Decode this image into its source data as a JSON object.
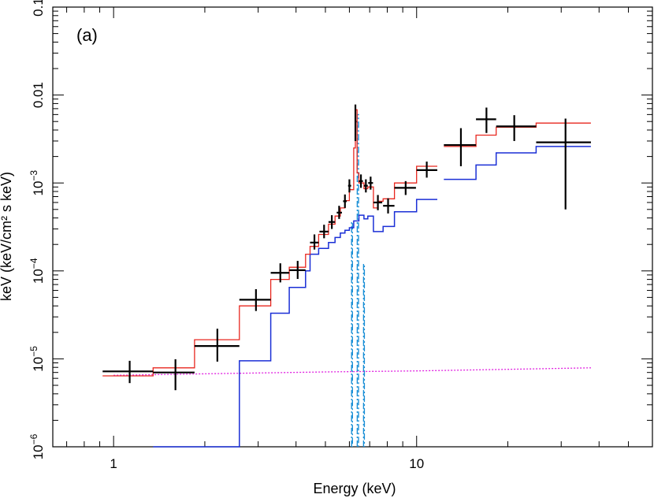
{
  "chart_data": {
    "type": "line",
    "panel_label": "(a)",
    "xlabel": "Energy (keV)",
    "ylabel": "keV (keV/cm² s keV)",
    "xscale": "log",
    "yscale": "log",
    "xlim": [
      0.63,
      60
    ],
    "ylim": [
      1e-06,
      0.1
    ],
    "grid": false,
    "x_ticks": [
      {
        "value": 1,
        "label": "1"
      },
      {
        "value": 10,
        "label": "10"
      }
    ],
    "y_ticks": [
      {
        "value": 0.1,
        "label": "0.1",
        "base": "",
        "exp": ""
      },
      {
        "value": 0.01,
        "label": "0.01",
        "base": "",
        "exp": ""
      },
      {
        "value": 0.001,
        "label": "",
        "base": "10",
        "exp": "−3"
      },
      {
        "value": 0.0001,
        "label": "",
        "base": "10",
        "exp": "−4"
      },
      {
        "value": 1e-05,
        "label": "",
        "base": "10",
        "exp": "−5"
      },
      {
        "value": 1e-06,
        "label": "",
        "base": "10",
        "exp": "−6"
      }
    ],
    "colors": {
      "data": "#000000",
      "total_model": "#e8271f",
      "continuum": "#1a2fd6",
      "lines": "#1a8fd6",
      "background": "#e020e0"
    },
    "data_points": [
      {
        "x": 1.13,
        "xlo": 0.92,
        "xhi": 1.35,
        "y": 7.2e-06,
        "ylo": 5.3e-06,
        "yhi": 9.5e-06
      },
      {
        "x": 1.6,
        "xlo": 1.35,
        "xhi": 1.85,
        "y": 7e-06,
        "ylo": 4.4e-06,
        "yhi": 9.9e-06
      },
      {
        "x": 2.2,
        "xlo": 1.85,
        "xhi": 2.6,
        "y": 1.4e-05,
        "ylo": 9.3e-06,
        "yhi": 2.2e-05
      },
      {
        "x": 2.95,
        "xlo": 2.6,
        "xhi": 3.3,
        "y": 4.7e-05,
        "ylo": 3.5e-05,
        "yhi": 6.2e-05
      },
      {
        "x": 3.55,
        "xlo": 3.3,
        "xhi": 3.8,
        "y": 9.5e-05,
        "ylo": 7.4e-05,
        "yhi": 0.000122
      },
      {
        "x": 4.05,
        "xlo": 3.8,
        "xhi": 4.3,
        "y": 0.000102,
        "ylo": 8.1e-05,
        "yhi": 0.00013
      },
      {
        "x": 4.6,
        "xlo": 4.45,
        "xhi": 4.75,
        "y": 0.00021,
        "ylo": 0.000175,
        "yhi": 0.00026
      },
      {
        "x": 4.95,
        "xlo": 4.78,
        "xhi": 5.12,
        "y": 0.00028,
        "ylo": 0.000235,
        "yhi": 0.000335
      },
      {
        "x": 5.25,
        "xlo": 5.12,
        "xhi": 5.38,
        "y": 0.00036,
        "ylo": 0.0003,
        "yhi": 0.00043
      },
      {
        "x": 5.55,
        "xlo": 5.45,
        "xhi": 5.67,
        "y": 0.00046,
        "ylo": 0.00039,
        "yhi": 0.00055
      },
      {
        "x": 5.8,
        "xlo": 5.72,
        "xhi": 5.88,
        "y": 0.00062,
        "ylo": 0.00052,
        "yhi": 0.00074
      },
      {
        "x": 6.0,
        "xlo": 5.94,
        "xhi": 6.08,
        "y": 0.00093,
        "ylo": 0.00078,
        "yhi": 0.0011
      },
      {
        "x": 6.28,
        "xlo": 6.25,
        "xhi": 6.33,
        "y": 0.005,
        "ylo": 0.003,
        "yhi": 0.0078
      },
      {
        "x": 6.55,
        "xlo": 6.45,
        "xhi": 6.65,
        "y": 0.00105,
        "ylo": 0.00088,
        "yhi": 0.00125
      },
      {
        "x": 6.8,
        "xlo": 6.7,
        "xhi": 6.9,
        "y": 0.00093,
        "ylo": 0.00078,
        "yhi": 0.0011
      },
      {
        "x": 7.05,
        "xlo": 6.92,
        "xhi": 7.18,
        "y": 0.001,
        "ylo": 0.00084,
        "yhi": 0.00118
      },
      {
        "x": 7.45,
        "xlo": 7.2,
        "xhi": 7.7,
        "y": 0.0006,
        "ylo": 0.00049,
        "yhi": 0.00073
      },
      {
        "x": 8.05,
        "xlo": 7.75,
        "xhi": 8.45,
        "y": 0.00055,
        "ylo": 0.00045,
        "yhi": 0.00067
      },
      {
        "x": 9.2,
        "xlo": 8.45,
        "xhi": 9.95,
        "y": 0.00088,
        "ylo": 0.00073,
        "yhi": 0.00105
      },
      {
        "x": 10.8,
        "xlo": 10.0,
        "xhi": 11.7,
        "y": 0.0014,
        "ylo": 0.00115,
        "yhi": 0.00175
      },
      {
        "x": 14.0,
        "xlo": 12.3,
        "xhi": 15.7,
        "y": 0.0027,
        "ylo": 0.00155,
        "yhi": 0.0042
      },
      {
        "x": 17.0,
        "xlo": 15.7,
        "xhi": 18.3,
        "y": 0.0053,
        "ylo": 0.0037,
        "yhi": 0.0072
      },
      {
        "x": 21.0,
        "xlo": 18.3,
        "xhi": 24.8,
        "y": 0.0044,
        "ylo": 0.003,
        "yhi": 0.0059
      },
      {
        "x": 31.0,
        "xlo": 24.8,
        "xhi": 37.6,
        "y": 0.0029,
        "ylo": 0.0005,
        "yhi": 0.0054
      }
    ],
    "series": [
      {
        "id": "total_model",
        "bins": [
          [
            [
              0.92,
              1.35,
              6.4e-06
            ],
            [
              1.35,
              1.85,
              7.9e-06
            ],
            [
              1.85,
              2.6,
              1.65e-05
            ],
            [
              2.6,
              3.3,
              4e-05
            ],
            [
              3.3,
              3.8,
              8e-05
            ],
            [
              3.8,
              4.3,
              0.00011
            ],
            [
              4.3,
              4.45,
              0.000155
            ],
            [
              4.45,
              4.75,
              0.00019
            ],
            [
              4.75,
              5.12,
              0.00026
            ],
            [
              5.12,
              5.38,
              0.00034
            ],
            [
              5.38,
              5.6,
              0.00042
            ],
            [
              5.6,
              5.8,
              0.00052
            ],
            [
              5.8,
              6.0,
              0.00063
            ],
            [
              6.0,
              6.2,
              0.00084
            ],
            [
              6.2,
              6.28,
              0.0025
            ],
            [
              6.28,
              6.36,
              0.0068
            ],
            [
              6.36,
              6.45,
              0.0013
            ],
            [
              6.45,
              6.7,
              0.001
            ],
            [
              6.7,
              6.9,
              0.00086
            ],
            [
              6.9,
              7.2,
              0.0009
            ],
            [
              7.2,
              7.45,
              0.00052
            ],
            [
              7.45,
              7.75,
              0.00062
            ],
            [
              7.75,
              8.45,
              0.00066
            ],
            [
              8.45,
              10.0,
              0.001
            ],
            [
              10.0,
              11.7,
              0.00155
            ]
          ],
          [
            [
              12.3,
              15.7,
              0.0026
            ],
            [
              15.7,
              18.3,
              0.0035
            ],
            [
              18.3,
              24.8,
              0.0043
            ],
            [
              24.8,
              37.6,
              0.0048
            ]
          ]
        ]
      },
      {
        "id": "continuum",
        "bins": [
          [
            [
              1.35,
              1.85,
              3e-07
            ],
            [
              1.85,
              2.6,
              1e-06
            ],
            [
              2.6,
              3.3,
              9.5e-06
            ],
            [
              3.3,
              3.8,
              3.3e-05
            ],
            [
              3.8,
              4.3,
              6.5e-05
            ],
            [
              4.3,
              4.45,
              0.0001
            ],
            [
              4.45,
              4.75,
              0.000155
            ],
            [
              4.75,
              5.12,
              0.00018
            ],
            [
              5.12,
              5.38,
              0.00021
            ],
            [
              5.38,
              5.6,
              0.00024
            ],
            [
              5.6,
              5.8,
              0.00027
            ],
            [
              5.8,
              6.0,
              0.00029
            ],
            [
              6.0,
              6.2,
              0.00031
            ],
            [
              6.2,
              6.45,
              0.00037
            ],
            [
              6.45,
              6.7,
              0.00043
            ],
            [
              6.7,
              6.9,
              0.00039
            ],
            [
              6.9,
              7.2,
              0.00042
            ],
            [
              7.2,
              7.75,
              0.00028
            ],
            [
              7.75,
              8.45,
              0.00032
            ],
            [
              8.45,
              10.0,
              0.00047
            ],
            [
              10.0,
              11.7,
              0.00065
            ]
          ],
          [
            [
              12.3,
              15.7,
              0.0011
            ],
            [
              15.7,
              18.3,
              0.0016
            ],
            [
              18.3,
              24.8,
              0.0022
            ],
            [
              24.8,
              37.6,
              0.0026
            ]
          ]
        ]
      },
      {
        "id": "background",
        "points": [
          [
            1.0,
            6.5e-06
          ],
          [
            2.0,
            6.75e-06
          ],
          [
            5.0,
            7.1e-06
          ],
          [
            10.0,
            7.3e-06
          ],
          [
            20.0,
            7.6e-06
          ],
          [
            37.6,
            7.9e-06
          ]
        ]
      },
      {
        "id": "iron_lines",
        "lines": [
          {
            "x": 6.12,
            "peak": 0.00036,
            "halfwidth": 0.02
          },
          {
            "x": 6.4,
            "peak": 0.006,
            "halfwidth": 0.03
          },
          {
            "x": 6.7,
            "peak": 0.00012,
            "halfwidth": 0.02
          }
        ]
      }
    ]
  }
}
